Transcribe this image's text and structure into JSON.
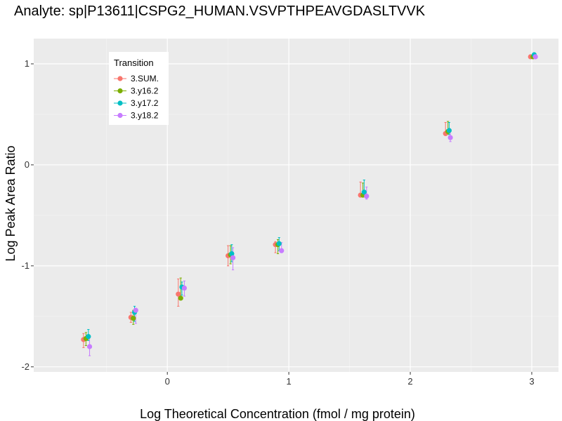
{
  "chart_data": {
    "type": "scatter",
    "title": "Analyte: sp|P13611|CSPG2_HUMAN.VSVPTHPEAVGDASLTVVK",
    "xlabel": "Log Theoretical Concentration (fmol / mg protein)",
    "ylabel": "Log Peak Area Ratio",
    "xlim": [
      -1.1,
      3.22
    ],
    "ylim": [
      -2.05,
      1.25
    ],
    "x_ticks": [
      0,
      1,
      2,
      3
    ],
    "x_tick_labels": [
      "0",
      "1",
      "2",
      "3"
    ],
    "y_ticks": [
      -2,
      -1,
      0,
      1
    ],
    "y_tick_labels": [
      "-2",
      "-1",
      "0",
      "1"
    ],
    "grid": true,
    "legend": {
      "title": "Transition",
      "position": "top-left"
    },
    "series": [
      {
        "name": "3.SUM.",
        "color": "#F8766D",
        "points": [
          {
            "x": -0.69,
            "y": -1.73,
            "lo": -1.81,
            "hi": -1.67
          },
          {
            "x": -0.3,
            "y": -1.51,
            "lo": -1.56,
            "hi": -1.46
          },
          {
            "x": 0.09,
            "y": -1.28,
            "lo": -1.4,
            "hi": -1.13
          },
          {
            "x": 0.5,
            "y": -0.9,
            "lo": -1.0,
            "hi": -0.8
          },
          {
            "x": 0.89,
            "y": -0.79,
            "lo": -0.87,
            "hi": -0.76
          },
          {
            "x": 1.59,
            "y": -0.3,
            "lo": -0.32,
            "hi": -0.17
          },
          {
            "x": 2.29,
            "y": 0.31,
            "lo": 0.29,
            "hi": 0.42
          },
          {
            "x": 2.99,
            "y": 1.07,
            "lo": 1.07,
            "hi": 1.07
          }
        ]
      },
      {
        "name": "3.y16.2",
        "color": "#7CAE00",
        "points": [
          {
            "x": -0.67,
            "y": -1.72,
            "lo": -1.79,
            "hi": -1.66
          },
          {
            "x": -0.28,
            "y": -1.52,
            "lo": -1.58,
            "hi": -1.44
          },
          {
            "x": 0.11,
            "y": -1.32,
            "lo": -1.32,
            "hi": -1.12
          },
          {
            "x": 0.52,
            "y": -0.89,
            "lo": -0.98,
            "hi": -0.8
          },
          {
            "x": 0.91,
            "y": -0.79,
            "lo": -0.88,
            "hi": -0.74
          },
          {
            "x": 1.61,
            "y": -0.3,
            "lo": -0.32,
            "hi": -0.18
          },
          {
            "x": 2.31,
            "y": 0.33,
            "lo": 0.3,
            "hi": 0.43
          },
          {
            "x": 3.01,
            "y": 1.07,
            "lo": 1.06,
            "hi": 1.08
          }
        ]
      },
      {
        "name": "3.y17.2",
        "color": "#00BFC4",
        "points": [
          {
            "x": -0.65,
            "y": -1.7,
            "lo": -1.74,
            "hi": -1.63
          },
          {
            "x": -0.27,
            "y": -1.46,
            "lo": -1.55,
            "hi": -1.4
          },
          {
            "x": 0.12,
            "y": -1.21,
            "lo": -1.29,
            "hi": -1.16
          },
          {
            "x": 0.53,
            "y": -0.88,
            "lo": -0.96,
            "hi": -0.79
          },
          {
            "x": 0.92,
            "y": -0.78,
            "lo": -0.85,
            "hi": -0.72
          },
          {
            "x": 1.62,
            "y": -0.27,
            "lo": -0.3,
            "hi": -0.15
          },
          {
            "x": 2.32,
            "y": 0.34,
            "lo": 0.3,
            "hi": 0.42
          },
          {
            "x": 3.02,
            "y": 1.09,
            "lo": 1.08,
            "hi": 1.1
          }
        ]
      },
      {
        "name": "3.y18.2",
        "color": "#C77CFF",
        "points": [
          {
            "x": -0.64,
            "y": -1.8,
            "lo": -1.89,
            "hi": -1.71
          },
          {
            "x": -0.26,
            "y": -1.44,
            "lo": -1.57,
            "hi": -1.42
          },
          {
            "x": 0.14,
            "y": -1.22,
            "lo": -1.3,
            "hi": -1.15
          },
          {
            "x": 0.54,
            "y": -0.92,
            "lo": -1.04,
            "hi": -0.82
          },
          {
            "x": 0.94,
            "y": -0.85,
            "lo": -0.86,
            "hi": -0.77
          },
          {
            "x": 1.64,
            "y": -0.31,
            "lo": -0.34,
            "hi": -0.22
          },
          {
            "x": 2.33,
            "y": 0.27,
            "lo": 0.23,
            "hi": 0.35
          },
          {
            "x": 3.03,
            "y": 1.07,
            "lo": 1.06,
            "hi": 1.08
          }
        ]
      }
    ]
  }
}
